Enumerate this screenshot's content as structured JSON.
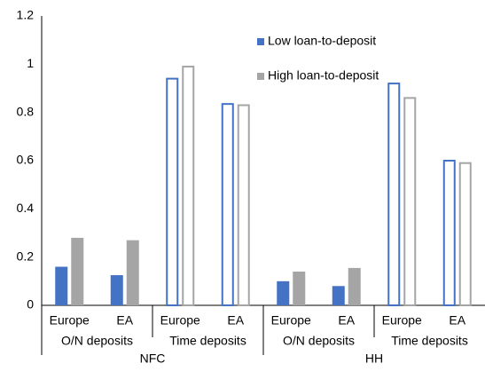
{
  "chart_data": {
    "type": "bar",
    "categories": [
      "Europe",
      "EA",
      "Europe",
      "EA",
      "Europe",
      "EA",
      "Europe",
      "EA"
    ],
    "group_labels": [
      "O/N deposits",
      null,
      "Time deposits",
      null,
      "O/N deposits",
      null,
      "Time deposits",
      null
    ],
    "sector_labels": [
      "NFC",
      null,
      null,
      null,
      "HH",
      null,
      null,
      null
    ],
    "fill_style": [
      "solid",
      "solid",
      "outline",
      "outline",
      "solid",
      "solid",
      "outline",
      "outline"
    ],
    "series": [
      {
        "name": "Low loan-to-deposit",
        "color": "#4472c4",
        "values": [
          0.16,
          0.125,
          0.94,
          0.835,
          0.1,
          0.08,
          0.92,
          0.6
        ]
      },
      {
        "name": "High loan-to-deposit",
        "color": "#a5a5a5",
        "values": [
          0.28,
          0.27,
          0.99,
          0.83,
          0.14,
          0.155,
          0.86,
          0.59
        ]
      }
    ],
    "ylim": [
      0,
      1.2
    ],
    "yticks": [
      0,
      0.2,
      0.4,
      0.6,
      0.8,
      1,
      1.2
    ],
    "grid": false,
    "legend": "top-center"
  }
}
